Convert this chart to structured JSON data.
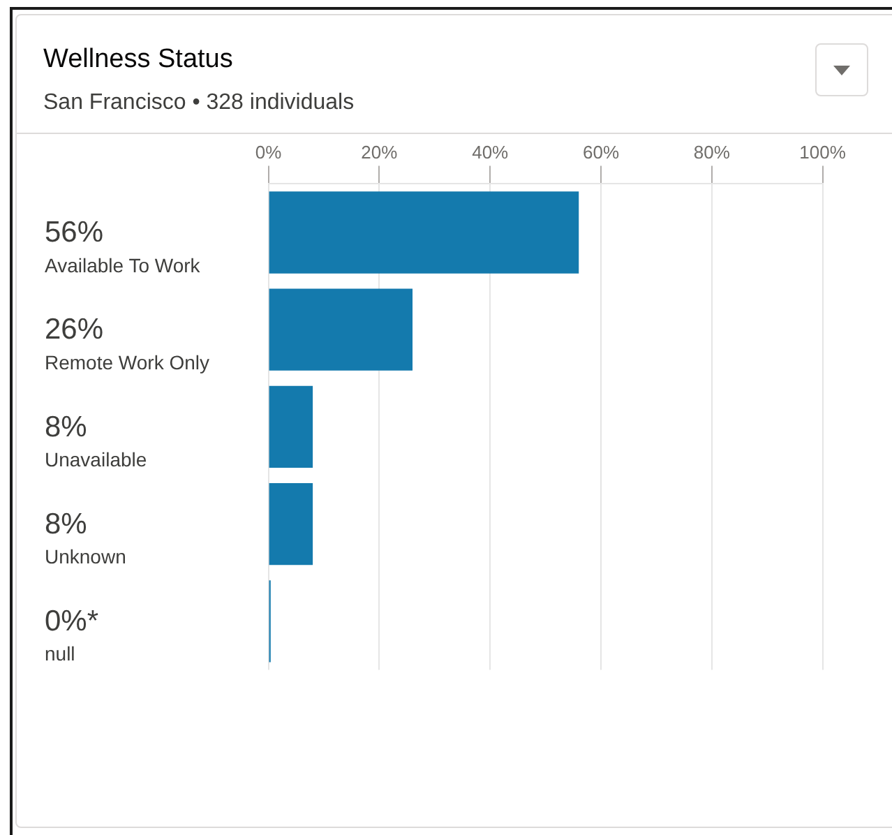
{
  "chart_data": {
    "type": "bar",
    "orientation": "horizontal",
    "title": "Wellness Status",
    "subtitle": "San Francisco • 328 individuals",
    "categories": [
      "Available To Work",
      "Remote Work Only",
      "Unavailable",
      "Unknown",
      "null"
    ],
    "values": [
      56,
      26,
      8,
      8,
      0.4
    ],
    "value_labels": [
      "56%",
      "26%",
      "8%",
      "8%",
      "0%*"
    ],
    "color": "#147aad",
    "xlim": [
      0,
      100
    ],
    "xticks": [
      {
        "value": 0,
        "label": "0%"
      },
      {
        "value": 20,
        "label": "20%"
      },
      {
        "value": 40,
        "label": "40%"
      },
      {
        "value": 60,
        "label": "60%"
      },
      {
        "value": 80,
        "label": "80%"
      },
      {
        "value": 100,
        "label": "100%"
      }
    ],
    "grid": "x"
  }
}
